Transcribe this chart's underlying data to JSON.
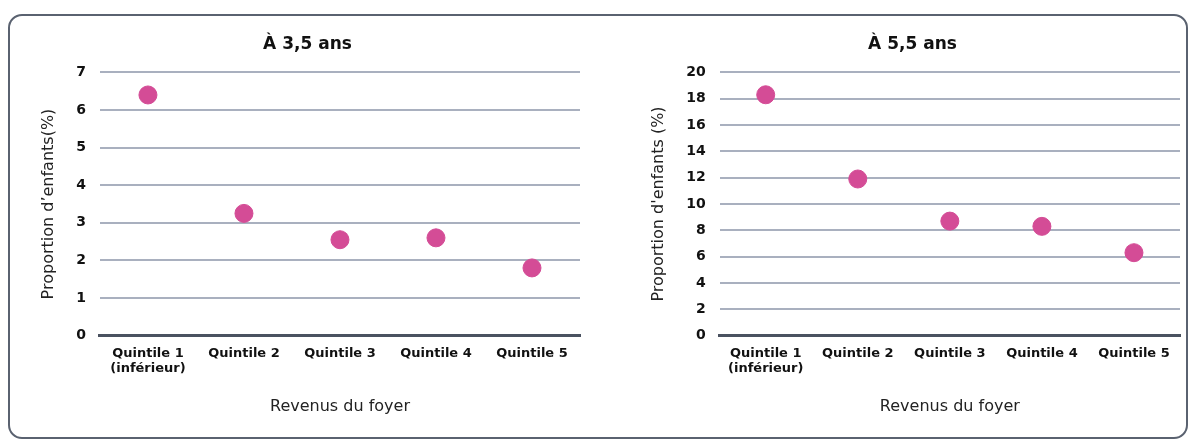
{
  "chart_data": [
    {
      "type": "scatter",
      "title": "À 3,5 ans",
      "xlabel": "Revenus du foyer",
      "ylabel": "Proportion d’enfants(%)",
      "categories": [
        "Quintile 1\n(inférieur)",
        "Quintile 2",
        "Quintile 3",
        "Quintile 4",
        "Quintile 5"
      ],
      "series": [
        {
          "color": "#d44c96",
          "values": [
            6.4,
            3.25,
            2.55,
            2.6,
            1.8
          ]
        }
      ],
      "ylim": [
        0,
        7
      ],
      "yticks": [
        0,
        1,
        2,
        3,
        4,
        5,
        6,
        7
      ],
      "grid": "y",
      "marker": "circle",
      "legend": false
    },
    {
      "type": "scatter",
      "title": "À 5,5 ans",
      "xlabel": "Revenus du foyer",
      "ylabel": "Proportion d'enfants (%)",
      "categories": [
        "Quintile 1\n(inférieur)",
        "Quintile 2",
        "Quintile 3",
        "Quintile 4",
        "Quintile 5"
      ],
      "series": [
        {
          "color": "#d44c96",
          "values": [
            18.3,
            11.9,
            8.7,
            8.3,
            6.3
          ]
        }
      ],
      "ylim": [
        0,
        20
      ],
      "yticks": [
        0,
        2,
        4,
        6,
        8,
        10,
        12,
        14,
        16,
        18,
        20
      ],
      "grid": "y",
      "marker": "circle",
      "legend": false
    }
  ]
}
